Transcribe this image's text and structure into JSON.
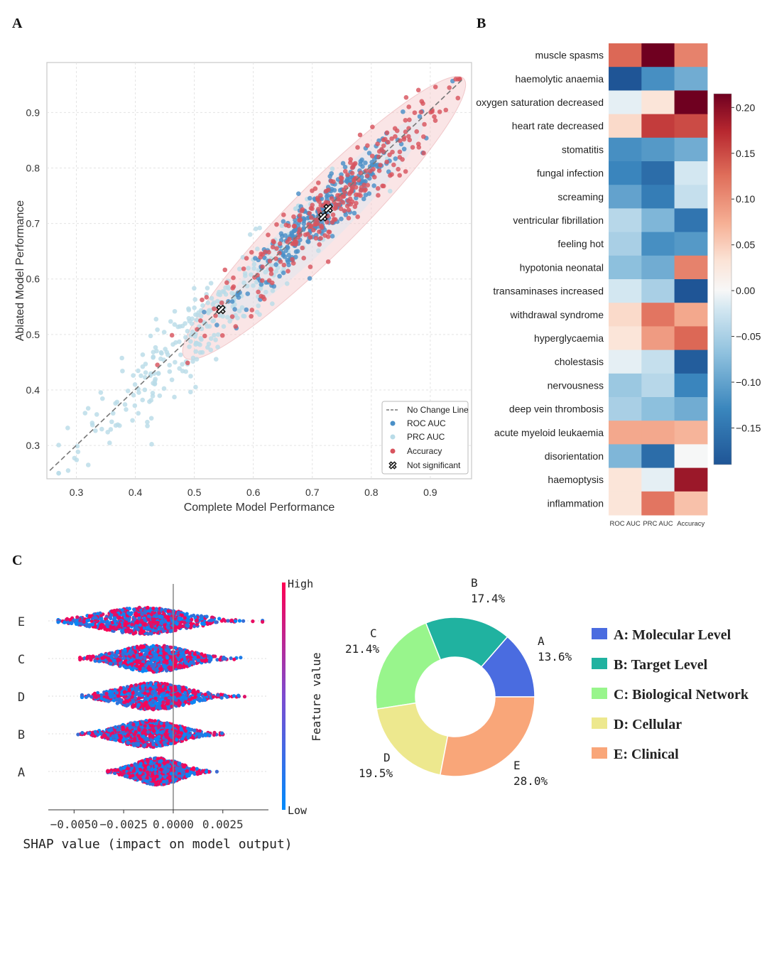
{
  "panel_labels": {
    "a": "A",
    "b": "B",
    "c": "C"
  },
  "chart_data": [
    {
      "id": "A",
      "type": "scatter",
      "xlabel": "Complete Model Performance",
      "ylabel": "Ablated Model Performance",
      "xlim": [
        0.25,
        0.97
      ],
      "ylim": [
        0.24,
        0.99
      ],
      "xticks": [
        "0.3",
        "0.4",
        "0.5",
        "0.6",
        "0.7",
        "0.8",
        "0.9"
      ],
      "yticks": [
        "0.3",
        "0.4",
        "0.5",
        "0.6",
        "0.7",
        "0.8",
        "0.9"
      ],
      "no_change_line": {
        "from": [
          0.255,
          0.255
        ],
        "to": [
          0.955,
          0.96
        ]
      },
      "series": [
        {
          "name": "ROC AUC",
          "color": "#4a8fc7",
          "center": [
            0.72,
            0.72
          ],
          "spread": 0.07,
          "count": 300
        },
        {
          "name": "PRC AUC",
          "color": "#b9dce8",
          "center": [
            0.52,
            0.52
          ],
          "spread": 0.11,
          "count": 300
        },
        {
          "name": "Accuracy",
          "color": "#d8545e",
          "center": [
            0.73,
            0.73
          ],
          "spread": 0.1,
          "count": 280
        }
      ],
      "ellipses": [
        {
          "center": [
            0.72,
            0.71
          ],
          "semi_axes": [
            0.38,
            0.055
          ],
          "angle_deg": 45,
          "color": "#f4c6c8"
        }
      ],
      "not_significant": [
        [
          0.545,
          0.545
        ],
        [
          0.718,
          0.712
        ],
        [
          0.727,
          0.727
        ]
      ],
      "legend": [
        "No Change Line",
        "ROC AUC",
        "PRC AUC",
        "Accuracy",
        "Not significant"
      ],
      "legend_position": "lower-right"
    },
    {
      "id": "B",
      "type": "heatmap",
      "columns": [
        "ROC AUC",
        "PRC AUC",
        "Accuracy"
      ],
      "rows": [
        "muscle spasms",
        "haemolytic anaemia",
        "oxygen saturation decreased",
        "heart rate decreased",
        "stomatitis",
        "fungal infection",
        "screaming",
        "ventricular fibrillation",
        "feeling hot",
        "hypotonia neonatal",
        "transaminases increased",
        "withdrawal syndrome",
        "hyperglycaemia",
        "cholestasis",
        "nervousness",
        "deep vein thrombosis",
        "acute myeloid leukaemia",
        "disorientation",
        "haemoptysis",
        "inflammation"
      ],
      "values": [
        [
          0.13,
          0.22,
          0.11
        ],
        [
          -0.19,
          -0.12,
          -0.09
        ],
        [
          -0.01,
          0.03,
          0.22
        ],
        [
          0.04,
          0.16,
          0.15
        ],
        [
          -0.12,
          -0.11,
          -0.09
        ],
        [
          -0.13,
          -0.16,
          -0.02
        ],
        [
          -0.1,
          -0.14,
          -0.03
        ],
        [
          -0.04,
          -0.08,
          -0.15
        ],
        [
          -0.05,
          -0.12,
          -0.11
        ],
        [
          -0.07,
          -0.09,
          0.11
        ],
        [
          -0.02,
          -0.05,
          -0.19
        ],
        [
          0.04,
          0.12,
          0.08
        ],
        [
          0.03,
          0.09,
          0.13
        ],
        [
          -0.01,
          -0.03,
          -0.18
        ],
        [
          -0.06,
          -0.04,
          -0.13
        ],
        [
          -0.05,
          -0.07,
          -0.09
        ],
        [
          0.08,
          0.08,
          0.07
        ],
        [
          -0.08,
          -0.16,
          0.0
        ],
        [
          0.03,
          -0.01,
          0.19
        ],
        [
          0.03,
          0.12,
          0.06
        ]
      ],
      "colorbar": {
        "vmin": -0.19,
        "vmax": 0.215,
        "ticks": [
          "0.20",
          "0.15",
          "0.10",
          "0.05",
          "0.00",
          "−0.05",
          "−0.10",
          "−0.15"
        ],
        "tick_values": [
          0.2,
          0.15,
          0.1,
          0.05,
          0.0,
          -0.05,
          -0.1,
          -0.15
        ]
      }
    },
    {
      "id": "C-left",
      "type": "scatter",
      "subtype": "shap-beeswarm",
      "features": [
        "E",
        "C",
        "D",
        "B",
        "A"
      ],
      "ranges": [
        [
          -0.0058,
          0.0045
        ],
        [
          -0.0047,
          0.0034
        ],
        [
          -0.0046,
          0.0036
        ],
        [
          -0.0048,
          0.0025
        ],
        [
          -0.0033,
          0.0022
        ]
      ],
      "centers": [
        -0.0015,
        -0.001,
        -0.001,
        -0.0012,
        -0.0008
      ],
      "xlim": [
        -0.0063,
        0.0048
      ],
      "xticks": [
        "−0.0050",
        "−0.0025",
        "0.0000",
        "0.0025"
      ],
      "xtick_values": [
        -0.005,
        -0.0025,
        0.0,
        0.0025
      ],
      "xlabel": "SHAP value (impact on model output)",
      "colorbar_label": "Feature value",
      "colorbar_high": "High",
      "colorbar_low": "Low",
      "color_high": "#ff0052",
      "color_low": "#008bfb"
    },
    {
      "id": "C-right",
      "type": "pie",
      "subtype": "donut",
      "slices": [
        {
          "key": "A",
          "label": "A",
          "pct_text": "13.6%",
          "value": 13.6,
          "color": "#4a6ce0",
          "legend": "A: Molecular Level"
        },
        {
          "key": "B",
          "label": "B",
          "pct_text": "17.4%",
          "value": 17.4,
          "color": "#20b2a0",
          "legend": "B: Target Level"
        },
        {
          "key": "C",
          "label": "C",
          "pct_text": "21.4%",
          "value": 21.4,
          "color": "#98f58c",
          "legend": "C: Biological Network"
        },
        {
          "key": "D",
          "label": "D",
          "pct_text": "19.5%",
          "value": 19.5,
          "color": "#ede88e",
          "legend": "D: Cellular"
        },
        {
          "key": "E",
          "label": "E",
          "pct_text": "28.0%",
          "value": 28.0,
          "color": "#f9a679",
          "legend": "E: Clinical"
        }
      ]
    }
  ]
}
